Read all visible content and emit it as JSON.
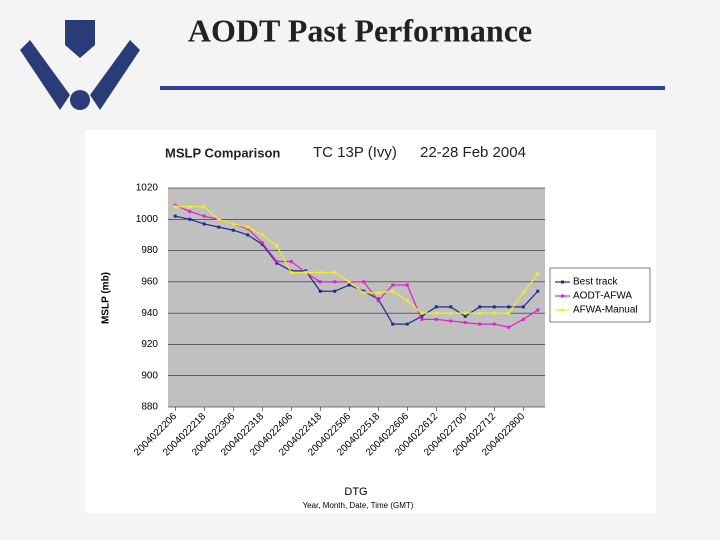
{
  "slide_title": "AODT Past Performance",
  "chart_data": {
    "type": "line",
    "title": "MSLP Comparison",
    "subtitle": "TC 13P (Ivy)",
    "date_range": "22-28 Feb 2004",
    "x_label": "DTG",
    "x_sublabel": "Year, Month, Date, Time (GMT)",
    "y_label": "MSLP (mb)",
    "categories": [
      "2004022206",
      null,
      "2004022218",
      null,
      "2004022306",
      null,
      "2004022318",
      null,
      "2004022406",
      null,
      "2004022418",
      null,
      "2004022506",
      null,
      "2004022518",
      null,
      "2004022606",
      null,
      "2004022612",
      null,
      "2004022700",
      null,
      "2004022712",
      null,
      "2004022800",
      null
    ],
    "series": [
      {
        "name": "Best track",
        "color": "#1f2a8c",
        "values": [
          1002,
          1000,
          997,
          995,
          993,
          990,
          984,
          972,
          967,
          967,
          954,
          954,
          958,
          954,
          949,
          933,
          933,
          938,
          944,
          944,
          938,
          944,
          944,
          944,
          944,
          954
        ]
      },
      {
        "name": "AODT-AFWA",
        "color": "#e020d0",
        "values": [
          1009,
          1005,
          1002,
          1000,
          997,
          994,
          985,
          973,
          973,
          966,
          960,
          960,
          960,
          960,
          948,
          958,
          958,
          936,
          936,
          935,
          934,
          933,
          933,
          931,
          936,
          942
        ]
      },
      {
        "name": "AFWA-Manual",
        "color": "#f0f020",
        "values": [
          1008,
          1008,
          1008,
          1000,
          997,
          995,
          990,
          983,
          966,
          966,
          966,
          966,
          960,
          953,
          953,
          954,
          948,
          940,
          940,
          940,
          940,
          940,
          940,
          940,
          953,
          965
        ]
      }
    ],
    "ylim": [
      880,
      1020
    ],
    "yticks": [
      880,
      900,
      920,
      940,
      960,
      980,
      1000,
      1020
    ],
    "grid": true,
    "legend": "right"
  }
}
